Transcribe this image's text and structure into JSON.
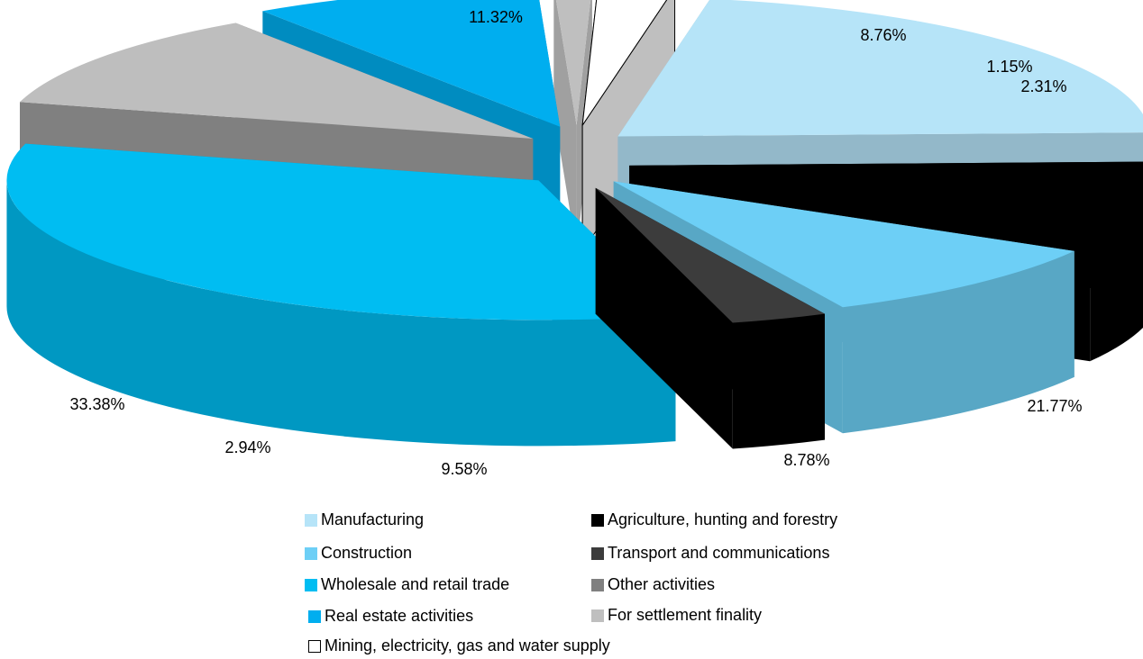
{
  "chart_data": {
    "type": "pie",
    "style": "3d-exploded",
    "slices": [
      {
        "label": "Manufacturing",
        "value": 21.77,
        "value_label": "21.77%",
        "color": "#b6e4f8",
        "side_color": "#93b8c9"
      },
      {
        "label": "Agriculture, hunting and forestry",
        "value": 8.78,
        "value_label": "8.78%",
        "color": "#000000",
        "side_color": "#000000"
      },
      {
        "label": "Construction",
        "value": 9.58,
        "value_label": "9.58%",
        "color": "#6dcff6",
        "side_color": "#58a7c5"
      },
      {
        "label": "Transport and communications",
        "value": 2.94,
        "value_label": "2.94%",
        "color": "#3c3c3c",
        "side_color": "#000000"
      },
      {
        "label": "Wholesale and retail trade",
        "value": 33.38,
        "value_label": "33.38%",
        "color": "#00bdf2",
        "side_color": "#0098c2"
      },
      {
        "label": "Other activities",
        "value": 11.32,
        "value_label": "11.32%",
        "color": "#bebebe",
        "side_color": "#808080"
      },
      {
        "label": "Real estate activities",
        "value": 8.76,
        "value_label": "8.76%",
        "color": "#00aeef",
        "side_color": "#008cc0"
      },
      {
        "label": "For settlement finality",
        "value": 1.15,
        "value_label": "1.15%",
        "color": "#bfbfbf",
        "side_color": "#a0a0a0"
      },
      {
        "label": "Mining, electricity, gas and water supply",
        "value": 2.31,
        "value_label": "2.31%",
        "color": "#ffffff",
        "side_color": "#bfbfbf"
      }
    ],
    "legend": {
      "placement": "bottom",
      "items": [
        {
          "label": "Manufacturing",
          "color": "#b6e4f8"
        },
        {
          "label": "Agriculture, hunting and forestry",
          "color": "#000000"
        },
        {
          "label": "Construction",
          "color": "#6dcff6"
        },
        {
          "label": "Transport and communications",
          "color": "#3c3c3c"
        },
        {
          "label": "Wholesale and retail trade",
          "color": "#00bdf2"
        },
        {
          "label": "Other activities",
          "color": "#808080"
        },
        {
          "label": "Real estate activities",
          "color": "#00aeef"
        },
        {
          "label": "For settlement finality",
          "color": "#bfbfbf"
        },
        {
          "label": "Mining, electricity, gas and water supply",
          "color": "#ffffff"
        }
      ]
    }
  }
}
